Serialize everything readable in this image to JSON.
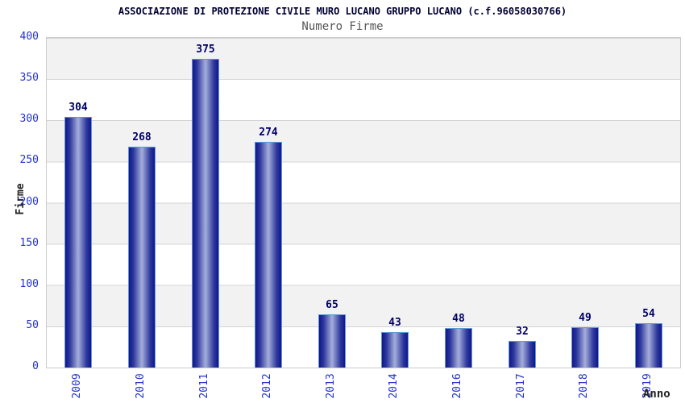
{
  "chart_data": {
    "type": "bar",
    "title": "ASSOCIAZIONE DI PROTEZIONE CIVILE MURO LUCANO GRUPPO LUCANO (c.f.96058030766)",
    "subtitle": "Numero Firme",
    "xlabel": "Anno",
    "ylabel": "Firme",
    "categories": [
      "2009",
      "2010",
      "2011",
      "2012",
      "2013",
      "2014",
      "2016",
      "2017",
      "2018",
      "2019"
    ],
    "values": [
      304,
      268,
      375,
      274,
      65,
      43,
      48,
      32,
      49,
      54
    ],
    "ylim": [
      0,
      400
    ],
    "ytick_step": 50,
    "ytick_labels": [
      "400",
      "350",
      "300",
      "250",
      "200",
      "150",
      "100",
      "50",
      "0"
    ],
    "grid": true,
    "legend": "none",
    "bar_value_labels_shown": true,
    "colors": {
      "bar_edge": "#14148c",
      "bar_center": "#a6aedb",
      "bar_outline": "#5b9bd5",
      "tick_label": "#2233cc",
      "value_label": "#000066",
      "band_gray": "#f2f2f2",
      "grid_line": "#d4d4d4",
      "title": "#000033",
      "subtitle": "#555555",
      "axis_label": "#222222"
    }
  }
}
